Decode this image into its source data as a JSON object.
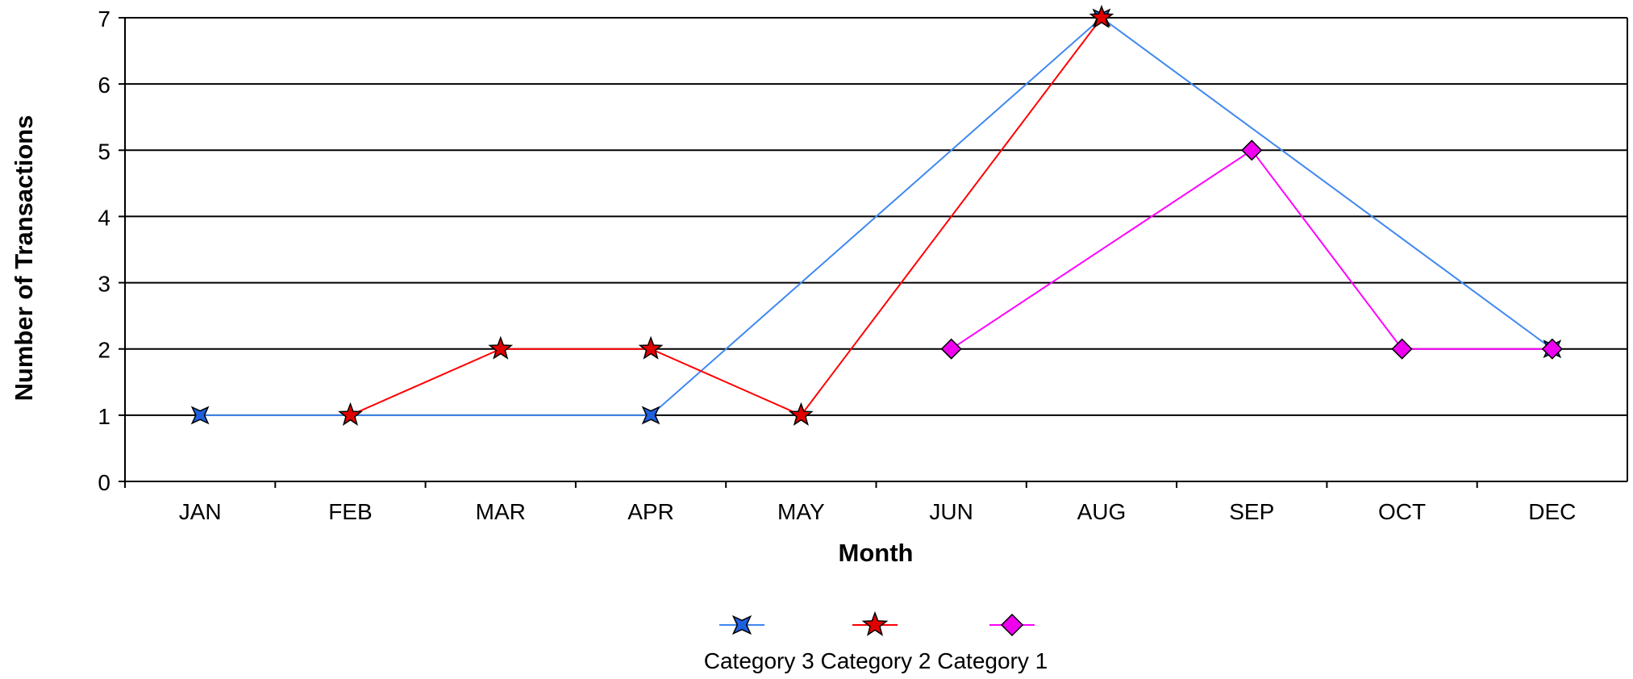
{
  "chart_data": {
    "type": "line",
    "title": "",
    "xlabel": "Month",
    "ylabel": "Number of Transactions",
    "categories": [
      "JAN",
      "FEB",
      "MAR",
      "APR",
      "MAY",
      "JUN",
      "AUG",
      "SEP",
      "OCT",
      "DEC"
    ],
    "ylim": [
      0,
      7
    ],
    "yticks": [
      "0",
      "1",
      "2",
      "3",
      "4",
      "5",
      "6",
      "7"
    ],
    "grid": "horizontal",
    "legend_position": "bottom",
    "series": [
      {
        "name": "Category 3",
        "color": "#3F88F0",
        "marker_color": "#1E5FE0",
        "marker": "four-point-star",
        "values": [
          1,
          null,
          null,
          1,
          null,
          null,
          7,
          null,
          null,
          2
        ]
      },
      {
        "name": "Category 2",
        "color": "#FF0000",
        "marker_color": "#E00000",
        "marker": "five-point-star",
        "values": [
          null,
          1,
          2,
          2,
          1,
          null,
          7,
          null,
          null,
          null
        ]
      },
      {
        "name": "Category 1",
        "color": "#FF00FF",
        "marker_color": "#F000F0",
        "marker": "diamond",
        "values": [
          null,
          null,
          null,
          null,
          null,
          2,
          null,
          5,
          2,
          2
        ]
      }
    ]
  }
}
